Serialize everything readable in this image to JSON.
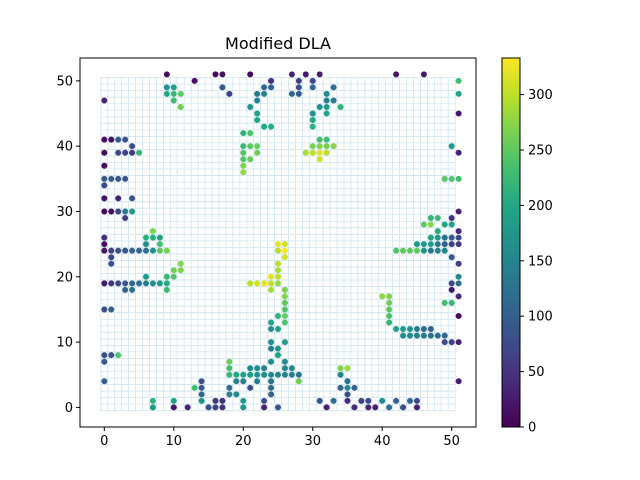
{
  "chart_data": {
    "type": "scatter",
    "title": "Modified DLA",
    "xlabel": "",
    "ylabel": "",
    "xlim": [
      -3.5,
      53.5
    ],
    "ylim": [
      -3,
      53.5
    ],
    "xticks": [
      0,
      10,
      20,
      30,
      40,
      50
    ],
    "yticks": [
      0,
      10,
      20,
      30,
      40,
      50
    ],
    "grid": true,
    "grid_cells": [
      51,
      51
    ],
    "grid_color": "#cfe3ee",
    "colormap": "viridis",
    "color_range": [
      0,
      333
    ],
    "colorbar": {
      "ticks": [
        0,
        50,
        100,
        150,
        200,
        250,
        300
      ]
    },
    "points": [
      [
        9,
        51,
        12
      ],
      [
        16,
        51,
        10
      ],
      [
        17,
        51,
        14
      ],
      [
        21,
        51,
        6
      ],
      [
        27,
        51,
        30
      ],
      [
        29,
        51,
        20
      ],
      [
        31,
        51,
        25
      ],
      [
        42,
        51,
        18
      ],
      [
        46,
        51,
        22
      ],
      [
        24,
        50,
        45
      ],
      [
        28,
        50,
        60
      ],
      [
        30,
        50,
        70
      ],
      [
        13,
        50,
        16
      ],
      [
        51,
        50,
        230
      ],
      [
        9,
        49,
        170
      ],
      [
        10,
        49,
        185
      ],
      [
        17,
        49,
        90
      ],
      [
        23,
        49,
        110
      ],
      [
        24,
        49,
        100
      ],
      [
        28,
        49,
        80
      ],
      [
        30,
        49,
        115
      ],
      [
        33,
        49,
        120
      ],
      [
        9,
        48,
        200
      ],
      [
        10,
        48,
        220
      ],
      [
        11,
        48,
        250
      ],
      [
        18,
        48,
        60
      ],
      [
        22,
        48,
        130
      ],
      [
        23,
        48,
        140
      ],
      [
        27,
        48,
        110
      ],
      [
        28,
        48,
        95
      ],
      [
        32,
        48,
        160
      ],
      [
        51,
        48,
        190
      ],
      [
        0,
        47,
        35
      ],
      [
        10,
        47,
        230
      ],
      [
        22,
        47,
        145
      ],
      [
        32,
        47,
        150
      ],
      [
        33,
        47,
        140
      ],
      [
        11,
        46,
        260
      ],
      [
        21,
        46,
        175
      ],
      [
        31,
        46,
        165
      ],
      [
        32,
        46,
        180
      ],
      [
        34,
        46,
        215
      ],
      [
        22,
        45,
        190
      ],
      [
        30,
        45,
        170
      ],
      [
        32,
        45,
        190
      ],
      [
        51,
        45,
        20
      ],
      [
        22,
        44,
        195
      ],
      [
        30,
        44,
        200
      ],
      [
        23,
        43,
        200
      ],
      [
        24,
        43,
        205
      ],
      [
        30,
        43,
        210
      ],
      [
        20,
        42,
        215
      ],
      [
        21,
        42,
        240
      ],
      [
        0,
        41,
        15
      ],
      [
        1,
        41,
        15
      ],
      [
        2,
        41,
        90
      ],
      [
        3,
        41,
        85
      ],
      [
        31,
        41,
        230
      ],
      [
        32,
        41,
        230
      ],
      [
        20,
        40,
        225
      ],
      [
        21,
        40,
        250
      ],
      [
        22,
        40,
        255
      ],
      [
        4,
        40,
        75
      ],
      [
        30,
        40,
        265
      ],
      [
        31,
        40,
        270
      ],
      [
        32,
        40,
        265
      ],
      [
        33,
        40,
        275
      ],
      [
        50,
        40,
        180
      ],
      [
        0,
        39,
        10
      ],
      [
        2,
        39,
        70
      ],
      [
        3,
        39,
        60
      ],
      [
        4,
        39,
        55
      ],
      [
        5,
        39,
        220
      ],
      [
        20,
        39,
        245
      ],
      [
        22,
        39,
        260
      ],
      [
        29,
        39,
        290
      ],
      [
        30,
        39,
        300
      ],
      [
        31,
        39,
        320
      ],
      [
        32,
        39,
        300
      ],
      [
        51,
        39,
        30
      ],
      [
        20,
        38,
        245
      ],
      [
        21,
        38,
        255
      ],
      [
        31,
        38,
        310
      ],
      [
        0,
        37,
        10
      ],
      [
        20,
        37,
        270
      ],
      [
        20,
        36,
        280
      ],
      [
        0,
        35,
        90
      ],
      [
        1,
        35,
        90
      ],
      [
        2,
        35,
        90
      ],
      [
        3,
        35,
        90
      ],
      [
        49,
        35,
        245
      ],
      [
        50,
        35,
        240
      ],
      [
        51,
        35,
        230
      ],
      [
        0,
        34,
        70
      ],
      [
        0,
        32,
        15
      ],
      [
        2,
        32,
        30
      ],
      [
        4,
        32,
        85
      ],
      [
        0,
        30,
        10
      ],
      [
        1,
        30,
        10
      ],
      [
        2,
        30,
        60
      ],
      [
        3,
        30,
        140
      ],
      [
        4,
        30,
        180
      ],
      [
        51,
        30,
        30
      ],
      [
        3,
        29,
        60
      ],
      [
        47,
        29,
        220
      ],
      [
        48,
        29,
        225
      ],
      [
        50,
        29,
        50
      ],
      [
        46,
        28,
        250
      ],
      [
        47,
        28,
        275
      ],
      [
        49,
        28,
        195
      ],
      [
        50,
        28,
        195
      ],
      [
        7,
        27,
        270
      ],
      [
        48,
        27,
        210
      ],
      [
        51,
        27,
        40
      ],
      [
        0,
        26,
        45
      ],
      [
        6,
        26,
        210
      ],
      [
        7,
        26,
        205
      ],
      [
        8,
        26,
        190
      ],
      [
        47,
        26,
        195
      ],
      [
        48,
        26,
        180
      ],
      [
        49,
        26,
        120
      ],
      [
        50,
        26,
        100
      ],
      [
        51,
        26,
        75
      ],
      [
        0,
        25,
        15
      ],
      [
        6,
        25,
        165
      ],
      [
        8,
        25,
        235
      ],
      [
        25,
        25,
        320
      ],
      [
        26,
        25,
        310
      ],
      [
        45,
        25,
        180
      ],
      [
        46,
        25,
        175
      ],
      [
        47,
        25,
        180
      ],
      [
        48,
        25,
        135
      ],
      [
        49,
        25,
        95
      ],
      [
        50,
        25,
        60
      ],
      [
        51,
        25,
        60
      ],
      [
        0,
        24,
        20
      ],
      [
        1,
        24,
        65
      ],
      [
        2,
        24,
        80
      ],
      [
        3,
        24,
        90
      ],
      [
        4,
        24,
        100
      ],
      [
        5,
        24,
        115
      ],
      [
        6,
        24,
        120
      ],
      [
        7,
        24,
        165
      ],
      [
        8,
        24,
        250
      ],
      [
        9,
        24,
        265
      ],
      [
        25,
        24,
        300
      ],
      [
        26,
        24,
        330
      ],
      [
        42,
        24,
        240
      ],
      [
        43,
        24,
        250
      ],
      [
        44,
        24,
        250
      ],
      [
        45,
        24,
        250
      ],
      [
        46,
        24,
        170
      ],
      [
        47,
        24,
        130
      ],
      [
        48,
        24,
        150
      ],
      [
        49,
        24,
        150
      ],
      [
        1,
        23,
        70
      ],
      [
        26,
        23,
        310
      ],
      [
        50,
        23,
        90
      ],
      [
        1,
        22,
        80
      ],
      [
        11,
        22,
        270
      ],
      [
        25,
        22,
        300
      ],
      [
        51,
        22,
        60
      ],
      [
        10,
        21,
        260
      ],
      [
        11,
        21,
        270
      ],
      [
        25,
        21,
        290
      ],
      [
        6,
        20,
        180
      ],
      [
        9,
        20,
        225
      ],
      [
        10,
        20,
        240
      ],
      [
        24,
        20,
        320
      ],
      [
        25,
        20,
        300
      ],
      [
        51,
        20,
        160
      ],
      [
        0,
        19,
        20
      ],
      [
        1,
        19,
        50
      ],
      [
        2,
        19,
        70
      ],
      [
        3,
        19,
        90
      ],
      [
        4,
        19,
        110
      ],
      [
        5,
        19,
        120
      ],
      [
        6,
        19,
        140
      ],
      [
        7,
        19,
        165
      ],
      [
        8,
        19,
        180
      ],
      [
        9,
        19,
        200
      ],
      [
        21,
        19,
        300
      ],
      [
        22,
        19,
        310
      ],
      [
        23,
        19,
        320
      ],
      [
        24,
        19,
        300
      ],
      [
        25,
        19,
        280
      ],
      [
        50,
        19,
        70
      ],
      [
        51,
        19,
        120
      ],
      [
        3,
        18,
        105
      ],
      [
        4,
        18,
        120
      ],
      [
        9,
        18,
        225
      ],
      [
        24,
        18,
        290
      ],
      [
        26,
        18,
        265
      ],
      [
        50,
        18,
        20
      ],
      [
        40,
        17,
        280
      ],
      [
        41,
        17,
        270
      ],
      [
        26,
        17,
        270
      ],
      [
        51,
        17,
        40
      ],
      [
        41,
        16,
        260
      ],
      [
        26,
        16,
        250
      ],
      [
        49,
        16,
        230
      ],
      [
        50,
        16,
        220
      ],
      [
        0,
        15,
        75
      ],
      [
        1,
        15,
        100
      ],
      [
        26,
        15,
        240
      ],
      [
        41,
        15,
        250
      ],
      [
        25,
        14,
        215
      ],
      [
        26,
        14,
        255
      ],
      [
        41,
        14,
        240
      ],
      [
        51,
        14,
        10
      ],
      [
        24,
        13,
        195
      ],
      [
        26,
        13,
        240
      ],
      [
        41,
        13,
        220
      ],
      [
        42,
        12,
        190
      ],
      [
        43,
        12,
        180
      ],
      [
        44,
        12,
        170
      ],
      [
        45,
        12,
        140
      ],
      [
        46,
        12,
        115
      ],
      [
        47,
        12,
        105
      ],
      [
        24,
        12,
        165
      ],
      [
        25,
        12,
        195
      ],
      [
        43,
        11,
        165
      ],
      [
        44,
        11,
        155
      ],
      [
        45,
        11,
        150
      ],
      [
        46,
        11,
        140
      ],
      [
        47,
        11,
        125
      ],
      [
        48,
        11,
        120
      ],
      [
        49,
        11,
        110
      ],
      [
        24,
        10,
        160
      ],
      [
        26,
        10,
        180
      ],
      [
        49,
        10,
        80
      ],
      [
        50,
        10,
        60
      ],
      [
        51,
        10,
        30
      ],
      [
        24,
        9,
        145
      ],
      [
        25,
        9,
        170
      ],
      [
        0,
        8,
        80
      ],
      [
        1,
        8,
        85
      ],
      [
        2,
        8,
        240
      ],
      [
        25,
        8,
        190
      ],
      [
        0,
        7,
        90
      ],
      [
        18,
        7,
        260
      ],
      [
        24,
        7,
        160
      ],
      [
        26,
        7,
        160
      ],
      [
        18,
        6,
        235
      ],
      [
        21,
        6,
        155
      ],
      [
        22,
        6,
        160
      ],
      [
        23,
        6,
        150
      ],
      [
        26,
        6,
        155
      ],
      [
        27,
        6,
        150
      ],
      [
        34,
        6,
        270
      ],
      [
        35,
        6,
        285
      ],
      [
        18,
        5,
        220
      ],
      [
        19,
        5,
        200
      ],
      [
        20,
        5,
        190
      ],
      [
        21,
        5,
        180
      ],
      [
        22,
        5,
        170
      ],
      [
        23,
        5,
        160
      ],
      [
        24,
        5,
        155
      ],
      [
        25,
        5,
        150
      ],
      [
        26,
        5,
        145
      ],
      [
        27,
        5,
        140
      ],
      [
        28,
        5,
        135
      ],
      [
        34,
        5,
        150
      ],
      [
        0,
        4,
        100
      ],
      [
        14,
        4,
        80
      ],
      [
        19,
        4,
        140
      ],
      [
        20,
        4,
        145
      ],
      [
        22,
        4,
        140
      ],
      [
        24,
        4,
        130
      ],
      [
        28,
        4,
        260
      ],
      [
        35,
        4,
        120
      ],
      [
        51,
        4,
        30
      ],
      [
        13,
        3,
        230
      ],
      [
        14,
        3,
        90
      ],
      [
        18,
        3,
        120
      ],
      [
        21,
        3,
        75
      ],
      [
        24,
        3,
        110
      ],
      [
        34,
        3,
        100
      ],
      [
        35,
        3,
        150
      ],
      [
        36,
        3,
        110
      ],
      [
        14,
        2,
        110
      ],
      [
        18,
        2,
        150
      ],
      [
        19,
        2,
        160
      ],
      [
        24,
        2,
        100
      ],
      [
        35,
        2,
        80
      ],
      [
        7,
        1,
        210
      ],
      [
        10,
        1,
        190
      ],
      [
        14,
        1,
        170
      ],
      [
        16,
        1,
        50
      ],
      [
        17,
        1,
        45
      ],
      [
        20,
        1,
        180
      ],
      [
        23,
        1,
        80
      ],
      [
        31,
        1,
        85
      ],
      [
        33,
        1,
        120
      ],
      [
        35,
        1,
        40
      ],
      [
        37,
        1,
        60
      ],
      [
        38,
        1,
        70
      ],
      [
        40,
        1,
        160
      ],
      [
        42,
        1,
        100
      ],
      [
        44,
        1,
        110
      ],
      [
        45,
        1,
        70
      ],
      [
        7,
        0,
        175
      ],
      [
        10,
        0,
        20
      ],
      [
        12,
        0,
        30
      ],
      [
        15,
        0,
        80
      ],
      [
        16,
        0,
        60
      ],
      [
        17,
        0,
        50
      ],
      [
        20,
        0,
        170
      ],
      [
        23,
        0,
        30
      ],
      [
        25,
        0,
        90
      ],
      [
        32,
        0,
        30
      ],
      [
        36,
        0,
        40
      ],
      [
        38,
        0,
        35
      ],
      [
        39,
        0,
        30
      ],
      [
        41,
        0,
        120
      ],
      [
        43,
        0,
        75
      ],
      [
        45,
        0,
        30
      ]
    ]
  }
}
